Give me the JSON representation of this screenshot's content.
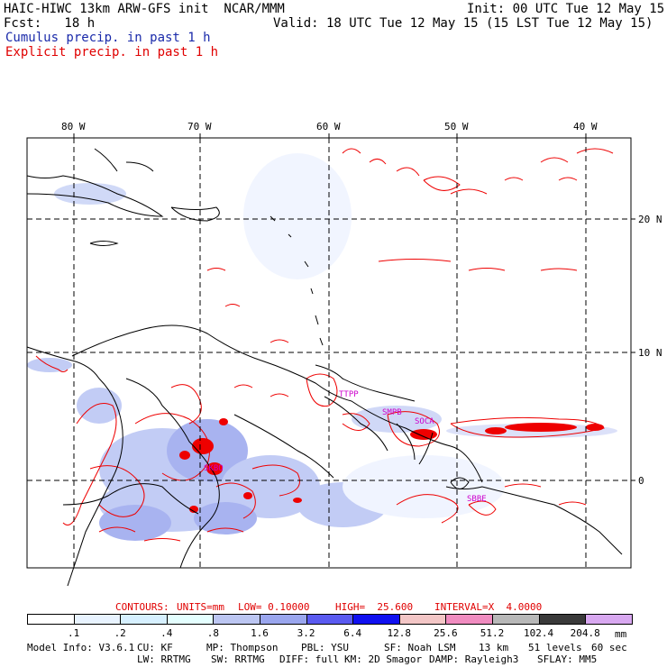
{
  "header": {
    "title": "HAIC-HIWC 13km ARW-GFS init  NCAR/MMM",
    "init": "Init: 00 UTC Tue 12 May 15",
    "fcst": "Fcst:   18 h",
    "valid": "Valid: 18 UTC Tue 12 May 15 (15 LST Tue 12 May 15)",
    "cumulus_label": "Cumulus precip. in past 1 h",
    "explicit_label": "Explicit precip. in past 1 h"
  },
  "map": {
    "lon_labels": [
      "80 W",
      "70 W",
      "60 W",
      "50 W",
      "40 W"
    ],
    "lat_labels": [
      "20 N",
      "10 N",
      "0"
    ],
    "station_labels": [
      "SKBO",
      "TTPP",
      "SMPB",
      "SOCA",
      "SBBE"
    ]
  },
  "contour_info": {
    "contours": "CONTOURS:",
    "units": "UNITS=mm",
    "low": "LOW= 0.10000",
    "high": "HIGH=  25.600",
    "interval": "INTERVAL=X  4.0000"
  },
  "colorbar": {
    "labels": [
      ".1",
      ".2",
      ".4",
      ".8",
      "1.6",
      "3.2",
      "6.4",
      "12.8",
      "25.6",
      "51.2",
      "102.4",
      "204.8"
    ],
    "units": "mm",
    "colors": [
      "#ffffff",
      "#e8f3ff",
      "#d6f0ff",
      "#e4ffff",
      "#bcc6f2",
      "#9aa6ee",
      "#5a5af0",
      "#1010f0",
      "#f3c6c6",
      "#f08cc0",
      "#b8b8b8",
      "#3a3a3a",
      "#d8a8f0"
    ]
  },
  "model_info": {
    "line1": [
      "Model Info: V3.6.1",
      "CU: KF",
      "MP: Thompson",
      "PBL: YSU",
      "SF: Noah LSM",
      "13 km",
      "51 levels",
      "60 sec"
    ],
    "line2": [
      "LW: RRTMG",
      "SW: RRTMG",
      "DIFF: full",
      "KM: 2D Smagor",
      "DAMP: Rayleigh3",
      "SFLAY: MM5"
    ]
  }
}
